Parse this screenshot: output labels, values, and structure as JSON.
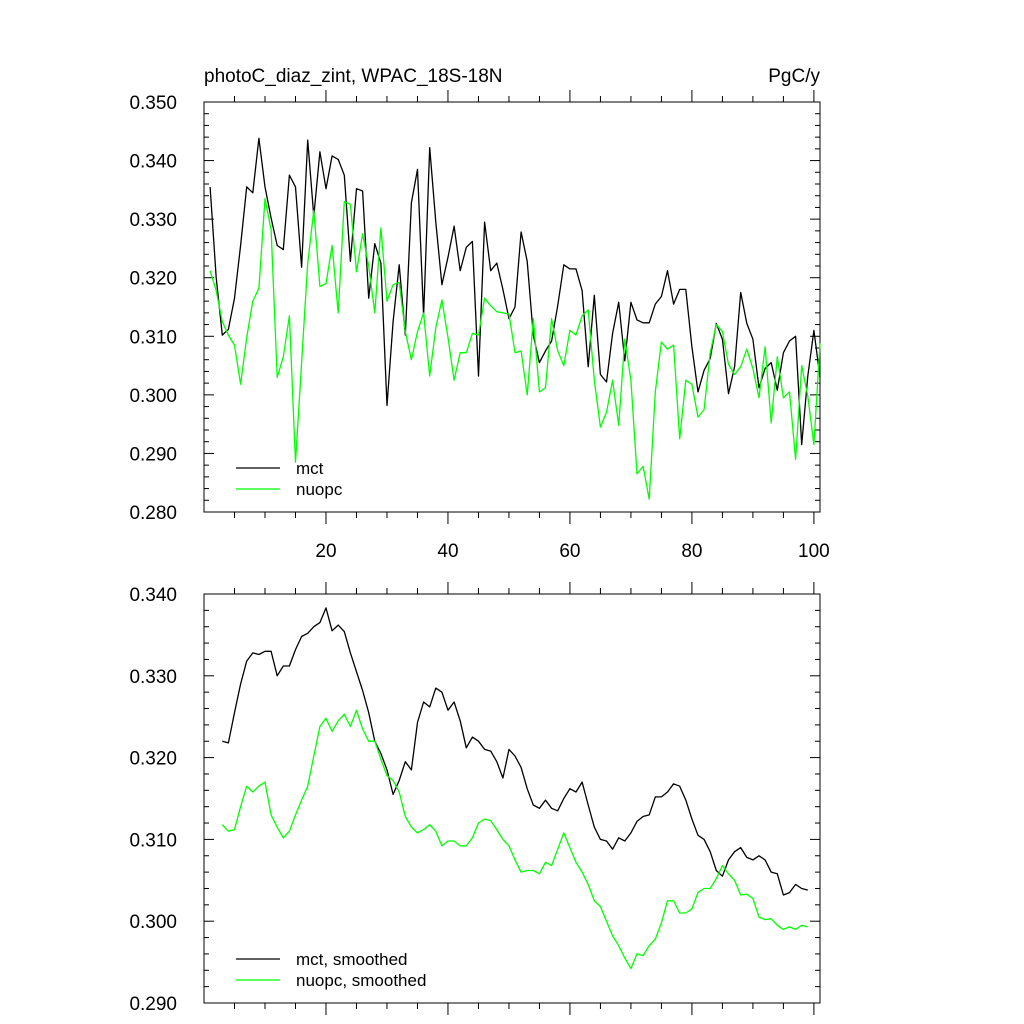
{
  "header": {
    "title_left": "photoC_diaz_zint, WPAC_18S-18N",
    "title_right": "PgC/y"
  },
  "colors": {
    "mct": "#000000",
    "nuopc": "#00ff00"
  },
  "chart_data": [
    {
      "type": "line",
      "title": "photoC_diaz_zint, WPAC_18S-18N",
      "units": "PgC/y",
      "xlim": [
        0,
        101
      ],
      "ylim": [
        0.28,
        0.35
      ],
      "xticks": [
        20,
        40,
        60,
        80,
        100
      ],
      "xtick_labels": [
        "20",
        "40",
        "60",
        "80",
        "100"
      ],
      "yticks": [
        0.28,
        0.29,
        0.3,
        0.31,
        0.32,
        0.33,
        0.34,
        0.35
      ],
      "ytick_labels": [
        "0.280",
        "0.290",
        "0.300",
        "0.310",
        "0.320",
        "0.330",
        "0.340",
        "0.350"
      ],
      "legend_placement": "bottom-left",
      "series": [
        {
          "name": "mct",
          "color": "#000000",
          "x": [
            1,
            2,
            3,
            4,
            5,
            6,
            7,
            8,
            9,
            10,
            11,
            12,
            13,
            14,
            15,
            16,
            17,
            18,
            19,
            20,
            21,
            22,
            23,
            24,
            25,
            26,
            27,
            28,
            29,
            30,
            31,
            32,
            33,
            34,
            35,
            36,
            37,
            38,
            39,
            40,
            41,
            42,
            43,
            44,
            45,
            46,
            47,
            48,
            49,
            50,
            51,
            52,
            53,
            54,
            55,
            56,
            57,
            58,
            59,
            60,
            61,
            62,
            63,
            64,
            65,
            66,
            67,
            68,
            69,
            70,
            71,
            72,
            73,
            74,
            75,
            76,
            77,
            78,
            79,
            80,
            81,
            82,
            83,
            84,
            85,
            86,
            87,
            88,
            89,
            90,
            91,
            92,
            93,
            94,
            95,
            96,
            97,
            98,
            99,
            100,
            101
          ],
          "values": [
            0.3355,
            0.32,
            0.3102,
            0.3112,
            0.3165,
            0.3255,
            0.3355,
            0.3345,
            0.3438,
            0.3355,
            0.3302,
            0.3255,
            0.3248,
            0.3375,
            0.3355,
            0.3218,
            0.3435,
            0.3305,
            0.3415,
            0.3352,
            0.3408,
            0.3402,
            0.3375,
            0.3228,
            0.3352,
            0.3348,
            0.3165,
            0.3258,
            0.3225,
            0.2982,
            0.3125,
            0.3222,
            0.3102,
            0.3328,
            0.3385,
            0.3135,
            0.3422,
            0.3295,
            0.3188,
            0.3235,
            0.3288,
            0.3212,
            0.3252,
            0.3262,
            0.3032,
            0.3295,
            0.3212,
            0.3225,
            0.318,
            0.313,
            0.315,
            0.3278,
            0.3228,
            0.3102,
            0.3055,
            0.3075,
            0.3092,
            0.3152,
            0.3222,
            0.3215,
            0.3215,
            0.3178,
            0.3048,
            0.317,
            0.3035,
            0.3022,
            0.3105,
            0.3158,
            0.3058,
            0.3158,
            0.3128,
            0.3123,
            0.3123,
            0.3155,
            0.3168,
            0.3212,
            0.3155,
            0.318,
            0.318,
            0.3082,
            0.3005,
            0.3042,
            0.3062,
            0.3122,
            0.3095,
            0.3002,
            0.3048,
            0.3175,
            0.3122,
            0.3095,
            0.3012,
            0.3045,
            0.3055,
            0.3008,
            0.3072,
            0.3092,
            0.31,
            0.2915,
            0.3032,
            0.311,
            0.303
          ]
        },
        {
          "name": "nuopc",
          "color": "#00ff00",
          "x": [
            1,
            2,
            3,
            4,
            5,
            6,
            7,
            8,
            9,
            10,
            11,
            12,
            13,
            14,
            15,
            16,
            17,
            18,
            19,
            20,
            21,
            22,
            23,
            24,
            25,
            26,
            27,
            28,
            29,
            30,
            31,
            32,
            33,
            34,
            35,
            36,
            37,
            38,
            39,
            40,
            41,
            42,
            43,
            44,
            45,
            46,
            47,
            48,
            49,
            50,
            51,
            52,
            53,
            54,
            55,
            56,
            57,
            58,
            59,
            60,
            61,
            62,
            63,
            64,
            65,
            66,
            67,
            68,
            69,
            70,
            71,
            72,
            73,
            74,
            75,
            76,
            77,
            78,
            79,
            80,
            81,
            82,
            83,
            84,
            85,
            86,
            87,
            88,
            89,
            90,
            91,
            92,
            93,
            94,
            95,
            96,
            97,
            98,
            99,
            100,
            101
          ],
          "values": [
            0.3212,
            0.3178,
            0.3125,
            0.3102,
            0.3085,
            0.3018,
            0.3098,
            0.316,
            0.3182,
            0.3335,
            0.3282,
            0.303,
            0.3065,
            0.3135,
            0.2885,
            0.3055,
            0.3225,
            0.3315,
            0.3185,
            0.319,
            0.3255,
            0.314,
            0.333,
            0.3325,
            0.321,
            0.3275,
            0.322,
            0.314,
            0.3285,
            0.316,
            0.3188,
            0.3192,
            0.3108,
            0.306,
            0.3108,
            0.314,
            0.3032,
            0.3115,
            0.3162,
            0.3098,
            0.3025,
            0.3072,
            0.3072,
            0.3105,
            0.3102,
            0.3165,
            0.3152,
            0.3142,
            0.314,
            0.3138,
            0.3072,
            0.3075,
            0.3,
            0.313,
            0.3005,
            0.3012,
            0.313,
            0.3075,
            0.305,
            0.311,
            0.3102,
            0.3135,
            0.3145,
            0.3025,
            0.2945,
            0.297,
            0.3025,
            0.2948,
            0.3095,
            0.3025,
            0.2865,
            0.2878,
            0.2822,
            0.3005,
            0.309,
            0.3078,
            0.3085,
            0.2925,
            0.3025,
            0.3018,
            0.2962,
            0.2975,
            0.3072,
            0.312,
            0.3108,
            0.3052,
            0.3035,
            0.3048,
            0.3078,
            0.3045,
            0.2995,
            0.3082,
            0.2952,
            0.3065,
            0.2995,
            0.3005,
            0.289,
            0.305,
            0.2998,
            0.2915,
            0.3088
          ]
        }
      ]
    },
    {
      "type": "line",
      "xlim": [
        0,
        101
      ],
      "ylim": [
        0.29,
        0.34
      ],
      "xticks": [
        20,
        40,
        60,
        80,
        100
      ],
      "yticks": [
        0.29,
        0.3,
        0.31,
        0.32,
        0.33,
        0.34
      ],
      "ytick_labels": [
        "0.290",
        "0.300",
        "0.310",
        "0.320",
        "0.330",
        "0.340"
      ],
      "legend_placement": "bottom-left",
      "series": [
        {
          "name": "mct, smoothed",
          "color": "#000000",
          "x": [
            3,
            4,
            5,
            6,
            7,
            8,
            9,
            10,
            11,
            12,
            13,
            14,
            15,
            16,
            17,
            18,
            19,
            20,
            21,
            22,
            23,
            24,
            25,
            26,
            27,
            28,
            29,
            30,
            31,
            32,
            33,
            34,
            35,
            36,
            37,
            38,
            39,
            40,
            41,
            42,
            43,
            44,
            45,
            46,
            47,
            48,
            49,
            50,
            51,
            52,
            53,
            54,
            55,
            56,
            57,
            58,
            59,
            60,
            61,
            62,
            63,
            64,
            65,
            66,
            67,
            68,
            69,
            70,
            71,
            72,
            73,
            74,
            75,
            76,
            77,
            78,
            79,
            80,
            81,
            82,
            83,
            84,
            85,
            86,
            87,
            88,
            89,
            90,
            91,
            92,
            93,
            94,
            95,
            96,
            97,
            98,
            99
          ],
          "values": [
            0.322,
            0.3218,
            0.3255,
            0.329,
            0.3318,
            0.3328,
            0.3326,
            0.333,
            0.333,
            0.33,
            0.3312,
            0.3312,
            0.3332,
            0.3348,
            0.3352,
            0.336,
            0.3365,
            0.3383,
            0.3355,
            0.3362,
            0.3354,
            0.3328,
            0.3305,
            0.3282,
            0.3255,
            0.322,
            0.3205,
            0.3185,
            0.3155,
            0.3172,
            0.3195,
            0.3185,
            0.3243,
            0.3268,
            0.3262,
            0.3285,
            0.328,
            0.3258,
            0.3268,
            0.3245,
            0.3212,
            0.3225,
            0.322,
            0.321,
            0.3208,
            0.3195,
            0.3175,
            0.321,
            0.3202,
            0.3188,
            0.3162,
            0.3142,
            0.3138,
            0.3148,
            0.3138,
            0.3135,
            0.315,
            0.3162,
            0.3158,
            0.317,
            0.3142,
            0.3115,
            0.31,
            0.3098,
            0.3088,
            0.3102,
            0.3098,
            0.3108,
            0.3122,
            0.3128,
            0.313,
            0.3152,
            0.3152,
            0.3158,
            0.3168,
            0.3165,
            0.3148,
            0.3125,
            0.3105,
            0.31,
            0.3085,
            0.3062,
            0.3055,
            0.3075,
            0.3085,
            0.309,
            0.3078,
            0.3075,
            0.308,
            0.3075,
            0.306,
            0.3058,
            0.3032,
            0.3035,
            0.3045,
            0.304,
            0.3038
          ],
          "x_end": 99
        },
        {
          "name": "nuopc, smoothed",
          "color": "#00ff00",
          "x": [
            3,
            4,
            5,
            6,
            7,
            8,
            9,
            10,
            11,
            12,
            13,
            14,
            15,
            16,
            17,
            18,
            19,
            20,
            21,
            22,
            23,
            24,
            25,
            26,
            27,
            28,
            29,
            30,
            31,
            32,
            33,
            34,
            35,
            36,
            37,
            38,
            39,
            40,
            41,
            42,
            43,
            44,
            45,
            46,
            47,
            48,
            49,
            50,
            51,
            52,
            53,
            54,
            55,
            56,
            57,
            58,
            59,
            60,
            61,
            62,
            63,
            64,
            65,
            66,
            67,
            68,
            69,
            70,
            71,
            72,
            73,
            74,
            75,
            76,
            77,
            78,
            79,
            80,
            81,
            82,
            83,
            84,
            85,
            86,
            87,
            88,
            89,
            90,
            91,
            92,
            93,
            94,
            95,
            96,
            97,
            98,
            99
          ],
          "values": [
            0.3118,
            0.311,
            0.3112,
            0.314,
            0.3165,
            0.3158,
            0.3165,
            0.317,
            0.313,
            0.3115,
            0.3102,
            0.311,
            0.313,
            0.3148,
            0.3165,
            0.3202,
            0.3238,
            0.3248,
            0.3232,
            0.3245,
            0.3253,
            0.3238,
            0.3258,
            0.3235,
            0.322,
            0.322,
            0.3198,
            0.3178,
            0.3172,
            0.3158,
            0.3128,
            0.3115,
            0.3108,
            0.3112,
            0.3118,
            0.311,
            0.3092,
            0.3098,
            0.3098,
            0.3092,
            0.3092,
            0.3102,
            0.312,
            0.3125,
            0.3123,
            0.3112,
            0.31,
            0.3092,
            0.3075,
            0.306,
            0.3062,
            0.3062,
            0.3058,
            0.3072,
            0.3068,
            0.3088,
            0.3108,
            0.309,
            0.3072,
            0.306,
            0.3045,
            0.3025,
            0.3018,
            0.3,
            0.2982,
            0.297,
            0.2955,
            0.2942,
            0.296,
            0.2958,
            0.297,
            0.2978,
            0.2998,
            0.3025,
            0.3025,
            0.301,
            0.301,
            0.3015,
            0.3035,
            0.304,
            0.304,
            0.3052,
            0.3068,
            0.3058,
            0.305,
            0.3032,
            0.3033,
            0.3028,
            0.3005,
            0.3002,
            0.3003,
            0.2995,
            0.299,
            0.2993,
            0.299,
            0.2995,
            0.2993
          ]
        }
      ]
    }
  ]
}
